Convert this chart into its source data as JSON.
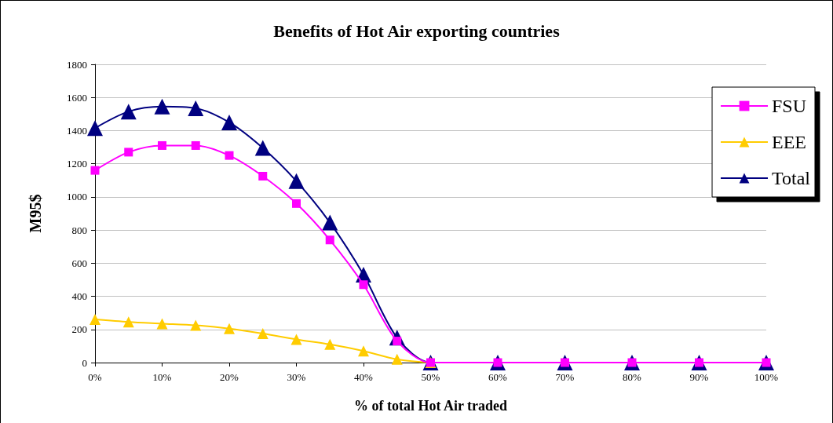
{
  "chart_data": {
    "type": "line",
    "title": "Benefits of Hot Air exporting countries",
    "xlabel": "% of total Hot Air traded",
    "ylabel": "M95$",
    "x": [
      0,
      5,
      10,
      15,
      20,
      25,
      30,
      35,
      40,
      45,
      50,
      60,
      70,
      80,
      90,
      100
    ],
    "series": [
      {
        "name": "FSU",
        "color": "#ff00ff",
        "marker": "square",
        "values": [
          1160,
          1270,
          1310,
          1310,
          1250,
          1125,
          960,
          740,
          470,
          130,
          0,
          0,
          0,
          0,
          0,
          0
        ]
      },
      {
        "name": "EEE",
        "color": "#ffcc00",
        "marker": "triangle",
        "values": [
          260,
          245,
          235,
          225,
          205,
          175,
          140,
          110,
          70,
          20,
          0,
          null,
          null,
          null,
          null,
          null
        ]
      },
      {
        "name": "Total",
        "color": "#000080",
        "marker": "triangle",
        "values": [
          1415,
          1515,
          1545,
          1535,
          1450,
          1295,
          1095,
          845,
          530,
          150,
          0,
          0,
          0,
          0,
          0,
          0
        ]
      }
    ],
    "xlim": [
      0,
      100
    ],
    "xticks": [
      {
        "value": 0,
        "label": "0%"
      },
      {
        "value": 10,
        "label": "10%"
      },
      {
        "value": 20,
        "label": "20%"
      },
      {
        "value": 30,
        "label": "30%"
      },
      {
        "value": 40,
        "label": "40%"
      },
      {
        "value": 50,
        "label": "50%"
      },
      {
        "value": 60,
        "label": "60%"
      },
      {
        "value": 70,
        "label": "70%"
      },
      {
        "value": 80,
        "label": "80%"
      },
      {
        "value": 90,
        "label": "90%"
      },
      {
        "value": 100,
        "label": "100%"
      }
    ],
    "ylim": [
      0,
      1800
    ],
    "yticks": [
      0,
      200,
      400,
      600,
      800,
      1000,
      1200,
      1400,
      1600,
      1800
    ],
    "grid": "y",
    "legend": "right",
    "line_style": "solid"
  }
}
